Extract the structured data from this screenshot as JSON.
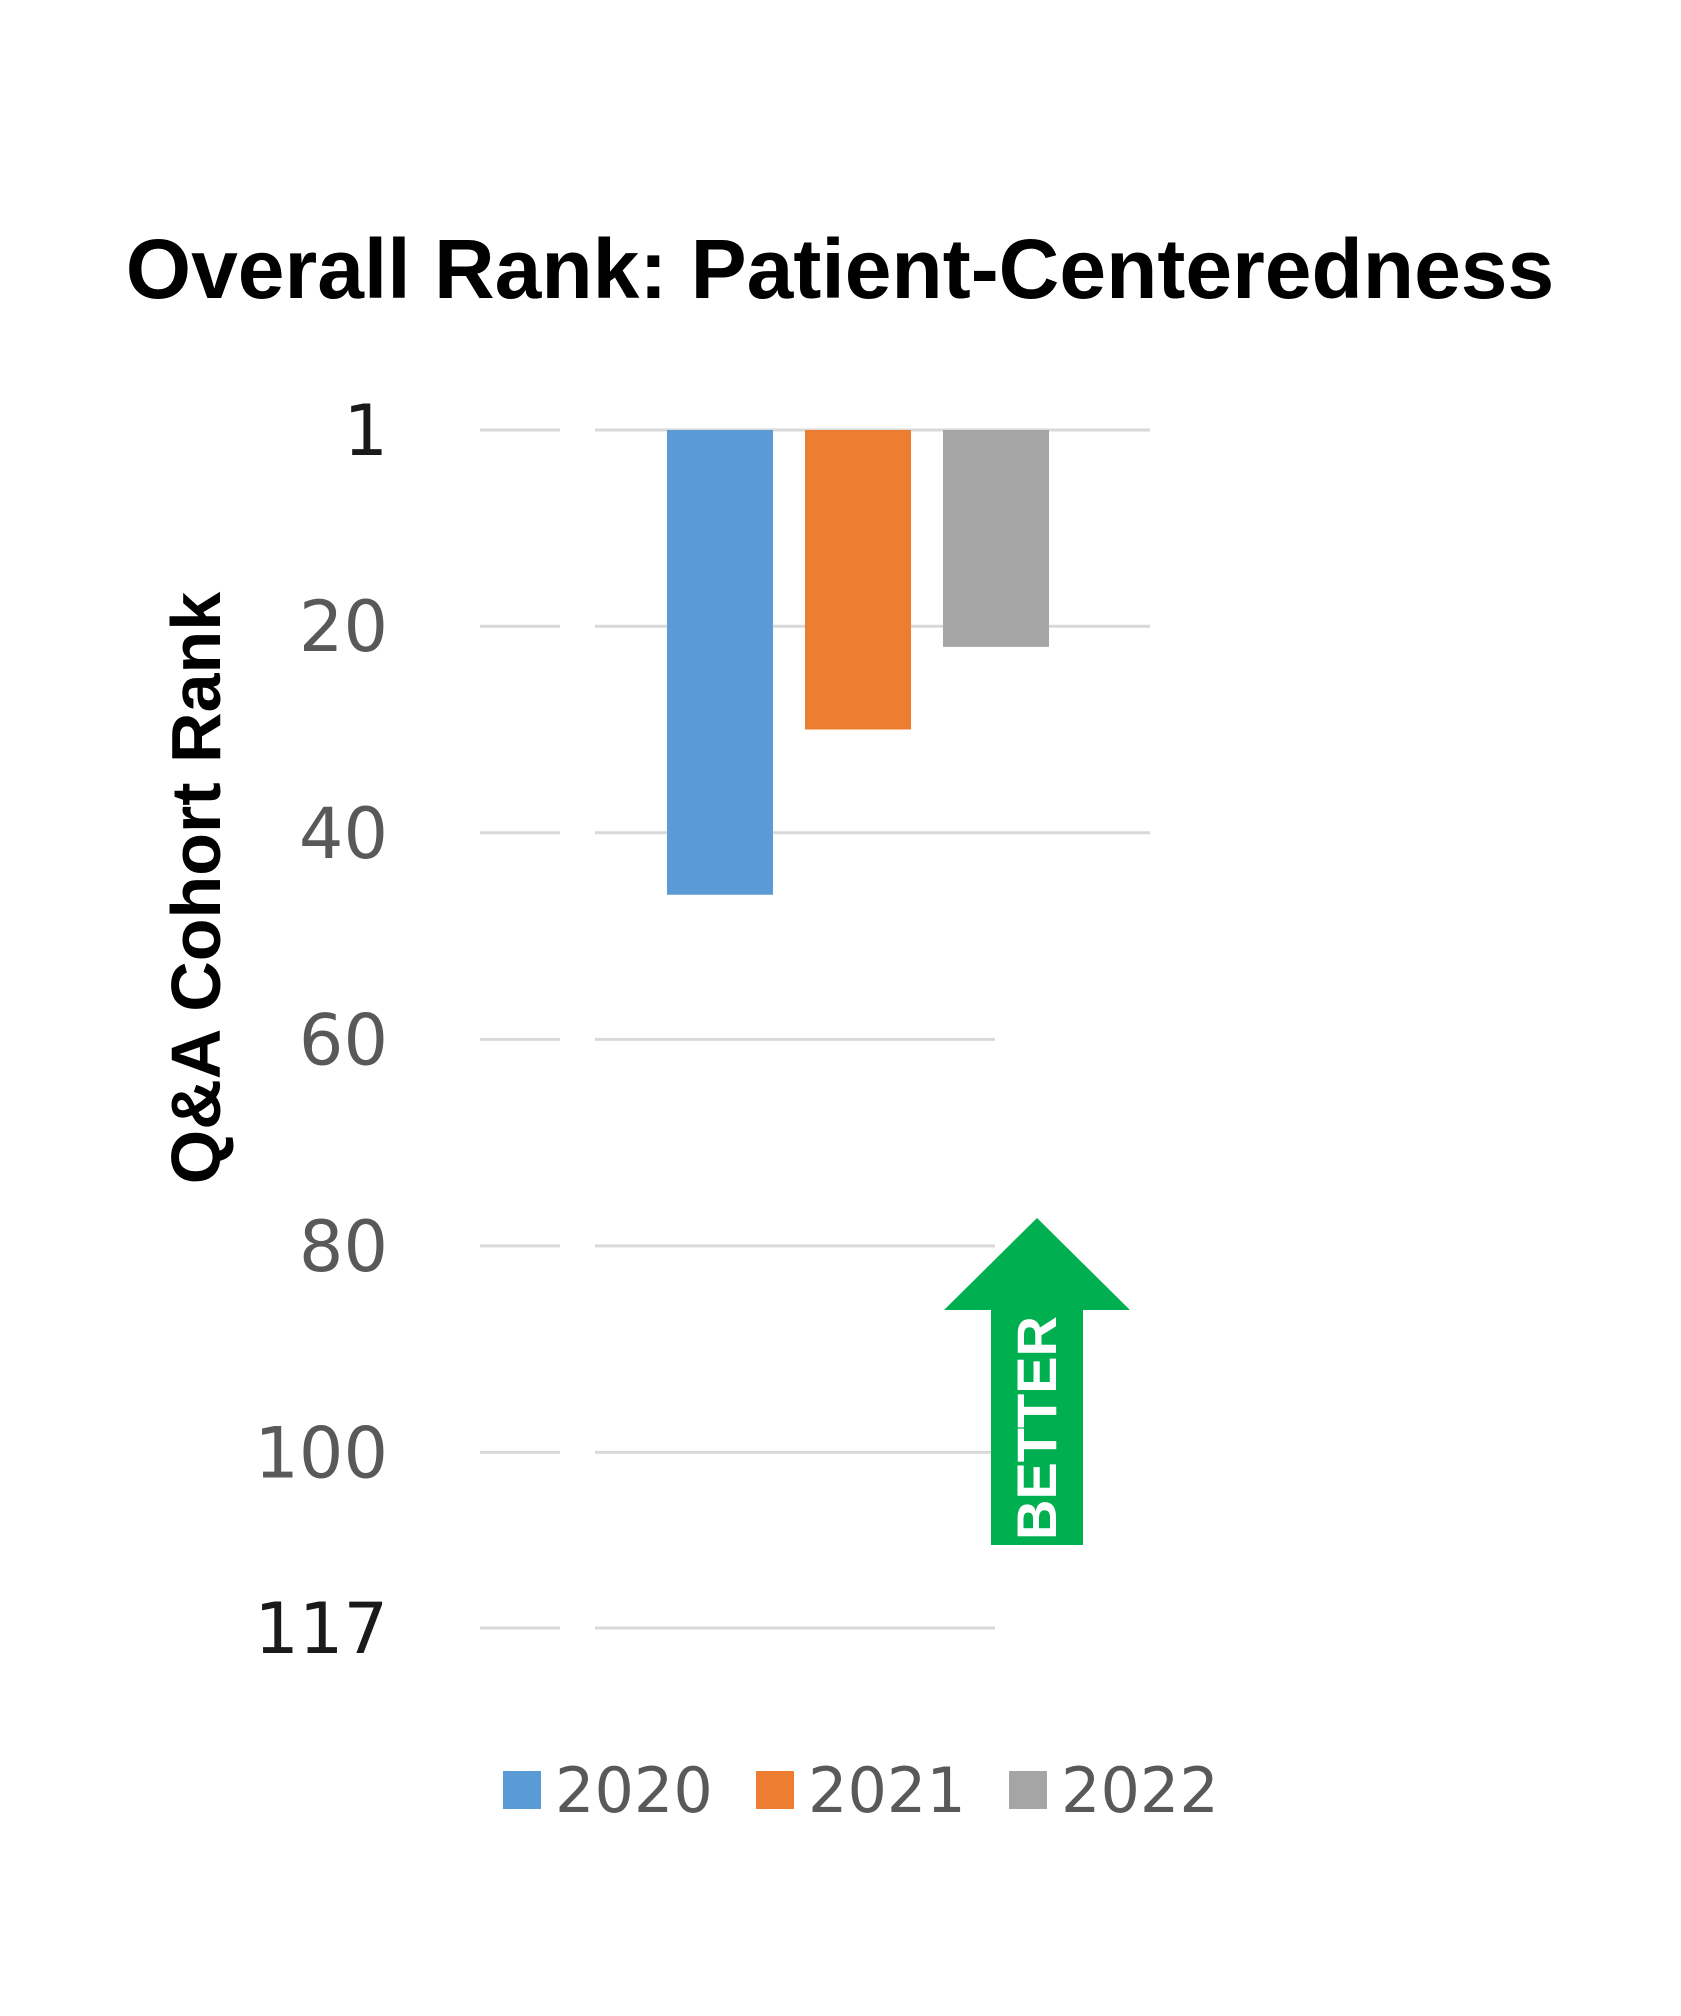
{
  "chart_data": {
    "type": "bar",
    "title": "Overall Rank: Patient-Centeredness",
    "ylabel": "Q&A Cohort Rank",
    "xlabel": "",
    "y_axis_inverted": true,
    "ylim": [
      1,
      117
    ],
    "yticks": [
      "1",
      "20",
      "40",
      "60",
      "80",
      "100",
      "117"
    ],
    "ytick_values": [
      1,
      20,
      40,
      60,
      80,
      100,
      117
    ],
    "categories": [
      ""
    ],
    "series": [
      {
        "name": "2020",
        "values": [
          46
        ],
        "color": "#5B9BD5"
      },
      {
        "name": "2021",
        "values": [
          30
        ],
        "color": "#ED7D31"
      },
      {
        "name": "2022",
        "values": [
          22
        ],
        "color": "#A5A5A5"
      }
    ],
    "grid": true,
    "legend_position": "bottom",
    "annotation": {
      "text": "BETTER",
      "color": "#00B050",
      "icon": "up-arrow-icon"
    }
  }
}
